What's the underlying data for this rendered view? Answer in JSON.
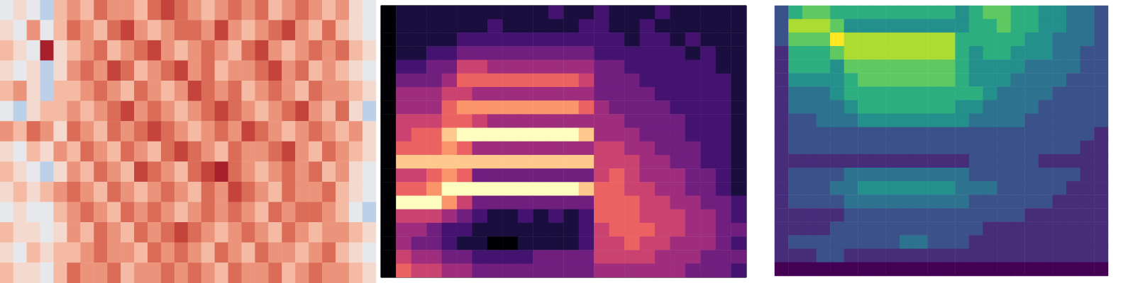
{
  "chart_data": [
    {
      "type": "heatmap",
      "color": "RdBu_r",
      "tick_labels": false,
      "cells": [
        [
          2,
          3,
          2,
          1,
          4,
          5,
          4,
          6,
          5,
          5,
          4,
          6,
          7,
          6,
          5,
          4,
          5,
          6,
          5,
          6,
          4,
          5,
          6,
          5,
          4,
          5,
          3,
          2
        ],
        [
          3,
          2,
          5,
          2,
          4,
          6,
          5,
          4,
          6,
          7,
          5,
          4,
          5,
          6,
          6,
          5,
          7,
          5,
          4,
          5,
          6,
          7,
          5,
          4,
          6,
          4,
          3,
          2
        ],
        [
          4,
          3,
          2,
          8,
          3,
          4,
          5,
          6,
          4,
          5,
          6,
          7,
          5,
          4,
          5,
          6,
          5,
          4,
          6,
          7,
          5,
          4,
          5,
          6,
          5,
          6,
          4,
          3
        ],
        [
          3,
          2,
          3,
          1,
          3,
          5,
          6,
          5,
          7,
          6,
          4,
          5,
          6,
          7,
          5,
          6,
          4,
          5,
          5,
          6,
          7,
          5,
          6,
          4,
          5,
          4,
          3,
          2
        ],
        [
          4,
          5,
          3,
          1,
          4,
          4,
          5,
          6,
          5,
          4,
          6,
          5,
          4,
          5,
          7,
          6,
          5,
          6,
          4,
          5,
          6,
          5,
          4,
          6,
          5,
          5,
          4,
          3
        ],
        [
          2,
          1,
          3,
          4,
          4,
          5,
          4,
          5,
          6,
          7,
          5,
          6,
          5,
          4,
          5,
          6,
          7,
          6,
          5,
          4,
          5,
          6,
          7,
          5,
          4,
          6,
          3,
          1
        ],
        [
          5,
          4,
          6,
          5,
          3,
          6,
          5,
          4,
          6,
          5,
          6,
          7,
          6,
          5,
          4,
          5,
          6,
          5,
          7,
          6,
          5,
          4,
          5,
          6,
          5,
          4,
          5,
          3
        ],
        [
          3,
          2,
          4,
          3,
          5,
          4,
          6,
          5,
          4,
          6,
          5,
          4,
          6,
          7,
          6,
          5,
          4,
          6,
          5,
          5,
          6,
          7,
          5,
          4,
          6,
          5,
          4,
          3
        ],
        [
          4,
          3,
          2,
          1,
          3,
          5,
          4,
          6,
          5,
          4,
          7,
          6,
          5,
          4,
          6,
          7,
          8,
          6,
          5,
          4,
          5,
          6,
          5,
          6,
          4,
          5,
          3,
          2
        ],
        [
          3,
          4,
          3,
          4,
          5,
          6,
          5,
          4,
          6,
          5,
          4,
          5,
          6,
          5,
          4,
          6,
          5,
          7,
          6,
          5,
          4,
          6,
          5,
          5,
          6,
          4,
          3,
          2
        ],
        [
          2,
          3,
          2,
          2,
          4,
          5,
          6,
          5,
          4,
          6,
          5,
          6,
          5,
          4,
          5,
          6,
          5,
          6,
          5,
          4,
          6,
          5,
          6,
          6,
          5,
          4,
          2,
          1
        ],
        [
          4,
          3,
          3,
          2,
          3,
          5,
          4,
          6,
          5,
          4,
          6,
          5,
          6,
          7,
          6,
          5,
          4,
          5,
          6,
          5,
          4,
          6,
          5,
          4,
          5,
          5,
          4,
          3
        ],
        [
          3,
          2,
          4,
          3,
          4,
          4,
          5,
          6,
          5,
          5,
          4,
          6,
          5,
          6,
          5,
          4,
          6,
          5,
          4,
          6,
          5,
          5,
          4,
          5,
          6,
          4,
          3,
          2
        ],
        [
          4,
          3,
          3,
          2,
          4,
          6,
          5,
          5,
          6,
          4,
          5,
          5,
          6,
          5,
          6,
          5,
          4,
          6,
          5,
          5,
          6,
          4,
          5,
          6,
          5,
          5,
          4,
          3
        ]
      ]
    },
    {
      "type": "heatmap",
      "color": "magma",
      "tick_labels": false,
      "cells": [
        [
          0,
          1,
          1,
          1,
          1,
          1,
          1,
          1,
          1,
          1,
          1,
          2,
          1,
          1,
          2,
          1,
          1,
          1,
          2,
          1,
          1,
          1,
          1,
          1
        ],
        [
          0,
          1,
          1,
          1,
          1,
          1,
          1,
          2,
          1,
          1,
          1,
          1,
          1,
          2,
          2,
          1,
          1,
          2,
          1,
          1,
          1,
          1,
          1,
          1
        ],
        [
          0,
          1,
          1,
          1,
          1,
          2,
          2,
          2,
          2,
          2,
          2,
          2,
          2,
          2,
          2,
          2,
          1,
          2,
          2,
          1,
          2,
          1,
          1,
          1
        ],
        [
          0,
          1,
          1,
          2,
          2,
          3,
          3,
          3,
          3,
          3,
          3,
          3,
          3,
          3,
          2,
          2,
          2,
          2,
          2,
          2,
          1,
          2,
          1,
          1
        ],
        [
          0,
          2,
          2,
          3,
          3,
          5,
          5,
          4,
          4,
          4,
          4,
          4,
          4,
          4,
          3,
          3,
          2,
          2,
          2,
          2,
          2,
          2,
          1,
          1
        ],
        [
          0,
          3,
          3,
          3,
          4,
          6,
          6,
          6,
          6,
          6,
          6,
          6,
          6,
          5,
          3,
          3,
          3,
          2,
          2,
          2,
          2,
          2,
          2,
          1
        ],
        [
          0,
          4,
          4,
          4,
          5,
          5,
          4,
          4,
          4,
          4,
          4,
          4,
          4,
          4,
          3,
          3,
          3,
          3,
          2,
          2,
          2,
          2,
          2,
          1
        ],
        [
          0,
          4,
          4,
          4,
          6,
          7,
          7,
          7,
          7,
          7,
          7,
          7,
          7,
          6,
          4,
          3,
          3,
          3,
          3,
          2,
          2,
          2,
          2,
          1
        ],
        [
          0,
          5,
          5,
          5,
          6,
          6,
          5,
          4,
          4,
          4,
          4,
          4,
          4,
          4,
          4,
          4,
          3,
          3,
          3,
          3,
          2,
          2,
          2,
          1
        ],
        [
          0,
          5,
          6,
          6,
          8,
          9,
          9,
          9,
          9,
          9,
          9,
          9,
          9,
          8,
          4,
          4,
          4,
          3,
          3,
          3,
          2,
          2,
          2,
          1
        ],
        [
          0,
          6,
          6,
          6,
          7,
          6,
          4,
          4,
          4,
          4,
          4,
          4,
          4,
          4,
          5,
          5,
          4,
          4,
          3,
          3,
          3,
          2,
          2,
          1
        ],
        [
          0,
          8,
          8,
          8,
          8,
          8,
          8,
          8,
          8,
          8,
          8,
          8,
          8,
          8,
          5,
          5,
          5,
          4,
          4,
          3,
          3,
          2,
          2,
          1
        ],
        [
          0,
          5,
          5,
          6,
          7,
          6,
          3,
          3,
          3,
          3,
          3,
          3,
          3,
          3,
          5,
          6,
          5,
          4,
          4,
          4,
          3,
          3,
          2,
          1
        ],
        [
          0,
          6,
          6,
          7,
          9,
          9,
          9,
          9,
          9,
          9,
          9,
          9,
          9,
          8,
          6,
          6,
          5,
          5,
          4,
          4,
          3,
          3,
          2,
          1
        ],
        [
          0,
          9,
          9,
          9,
          7,
          5,
          3,
          3,
          3,
          3,
          3,
          3,
          3,
          3,
          6,
          6,
          6,
          5,
          5,
          4,
          4,
          3,
          3,
          2
        ],
        [
          0,
          5,
          5,
          5,
          4,
          3,
          2,
          1,
          1,
          2,
          1,
          2,
          1,
          2,
          6,
          6,
          6,
          5,
          5,
          5,
          4,
          4,
          3,
          2
        ],
        [
          0,
          4,
          4,
          3,
          2,
          2,
          1,
          1,
          1,
          1,
          1,
          1,
          1,
          2,
          5,
          6,
          6,
          6,
          5,
          5,
          4,
          4,
          3,
          3
        ],
        [
          0,
          4,
          3,
          3,
          2,
          1,
          1,
          0,
          0,
          1,
          1,
          1,
          1,
          2,
          5,
          5,
          6,
          5,
          5,
          4,
          4,
          4,
          3,
          2
        ],
        [
          0,
          5,
          4,
          4,
          3,
          3,
          2,
          2,
          2,
          2,
          3,
          3,
          3,
          3,
          5,
          5,
          5,
          5,
          4,
          4,
          4,
          3,
          3,
          3
        ],
        [
          0,
          6,
          5,
          5,
          4,
          4,
          3,
          3,
          3,
          3,
          3,
          3,
          3,
          3,
          4,
          4,
          4,
          4,
          4,
          4,
          3,
          3,
          3,
          2
        ]
      ]
    },
    {
      "type": "heatmap",
      "color": "viridis",
      "tick_labels": false,
      "cells": [
        [
          3,
          6,
          7,
          7,
          6,
          6,
          6,
          6,
          6,
          6,
          6,
          6,
          6,
          5,
          6,
          7,
          7,
          6,
          6,
          5,
          5,
          4,
          4,
          3
        ],
        [
          3,
          8,
          8,
          8,
          7,
          5,
          5,
          5,
          5,
          5,
          5,
          5,
          5,
          5,
          6,
          6,
          7,
          6,
          6,
          5,
          5,
          4,
          4,
          3
        ],
        [
          3,
          7,
          7,
          7,
          9,
          8,
          8,
          8,
          8,
          8,
          8,
          8,
          8,
          6,
          6,
          6,
          6,
          6,
          5,
          5,
          4,
          4,
          4,
          3
        ],
        [
          2,
          6,
          6,
          6,
          7,
          8,
          8,
          8,
          8,
          8,
          8,
          8,
          8,
          6,
          5,
          6,
          6,
          5,
          5,
          5,
          4,
          4,
          3,
          3
        ],
        [
          2,
          6,
          6,
          6,
          5,
          7,
          7,
          7,
          7,
          7,
          7,
          7,
          7,
          6,
          5,
          5,
          5,
          5,
          4,
          4,
          4,
          4,
          3,
          3
        ],
        [
          2,
          5,
          5,
          5,
          5,
          6,
          7,
          7,
          7,
          7,
          7,
          7,
          7,
          6,
          5,
          5,
          5,
          4,
          4,
          4,
          4,
          3,
          3,
          3
        ],
        [
          2,
          4,
          4,
          4,
          5,
          6,
          6,
          6,
          6,
          6,
          6,
          6,
          6,
          6,
          6,
          5,
          4,
          4,
          4,
          4,
          3,
          3,
          3,
          3
        ],
        [
          2,
          4,
          4,
          4,
          4,
          5,
          6,
          6,
          6,
          6,
          6,
          6,
          6,
          5,
          5,
          4,
          4,
          4,
          4,
          3,
          3,
          3,
          3,
          3
        ],
        [
          2,
          3,
          3,
          4,
          4,
          4,
          5,
          5,
          5,
          5,
          5,
          5,
          5,
          5,
          4,
          4,
          4,
          4,
          3,
          3,
          3,
          3,
          3,
          3
        ],
        [
          2,
          3,
          3,
          3,
          3,
          3,
          3,
          3,
          3,
          3,
          3,
          3,
          3,
          3,
          3,
          3,
          3,
          3,
          3,
          3,
          3,
          3,
          3,
          2
        ],
        [
          2,
          3,
          3,
          3,
          3,
          3,
          3,
          3,
          3,
          3,
          3,
          3,
          3,
          3,
          3,
          3,
          3,
          3,
          3,
          3,
          3,
          3,
          2,
          2
        ],
        [
          2,
          2,
          2,
          2,
          2,
          2,
          2,
          2,
          2,
          2,
          2,
          2,
          2,
          2,
          3,
          3,
          3,
          3,
          3,
          2,
          2,
          2,
          2,
          2
        ],
        [
          2,
          3,
          3,
          3,
          3,
          4,
          4,
          4,
          4,
          4,
          4,
          4,
          4,
          4,
          3,
          3,
          3,
          3,
          3,
          3,
          3,
          3,
          2,
          2
        ],
        [
          2,
          3,
          3,
          3,
          4,
          4,
          5,
          5,
          5,
          5,
          5,
          5,
          5,
          4,
          4,
          4,
          3,
          3,
          3,
          3,
          3,
          2,
          2,
          2
        ],
        [
          2,
          3,
          3,
          3,
          3,
          4,
          4,
          4,
          4,
          4,
          4,
          4,
          4,
          4,
          3,
          3,
          3,
          3,
          3,
          3,
          2,
          2,
          2,
          2
        ],
        [
          2,
          2,
          2,
          2,
          2,
          3,
          3,
          3,
          3,
          3,
          3,
          3,
          3,
          3,
          3,
          3,
          3,
          3,
          2,
          2,
          2,
          2,
          2,
          2
        ],
        [
          2,
          2,
          2,
          2,
          3,
          3,
          3,
          3,
          3,
          3,
          3,
          3,
          3,
          3,
          3,
          2,
          2,
          2,
          2,
          2,
          2,
          2,
          2,
          2
        ],
        [
          2,
          3,
          3,
          3,
          3,
          3,
          3,
          3,
          3,
          4,
          4,
          3,
          3,
          3,
          2,
          2,
          2,
          2,
          2,
          2,
          2,
          2,
          2,
          2
        ],
        [
          2,
          2,
          2,
          3,
          3,
          2,
          2,
          2,
          2,
          2,
          2,
          2,
          2,
          2,
          2,
          2,
          2,
          2,
          2,
          2,
          2,
          2,
          2,
          2
        ],
        [
          1,
          1,
          1,
          1,
          1,
          1,
          1,
          1,
          1,
          1,
          1,
          1,
          1,
          1,
          1,
          1,
          1,
          1,
          1,
          1,
          1,
          1,
          1,
          1
        ]
      ]
    }
  ]
}
